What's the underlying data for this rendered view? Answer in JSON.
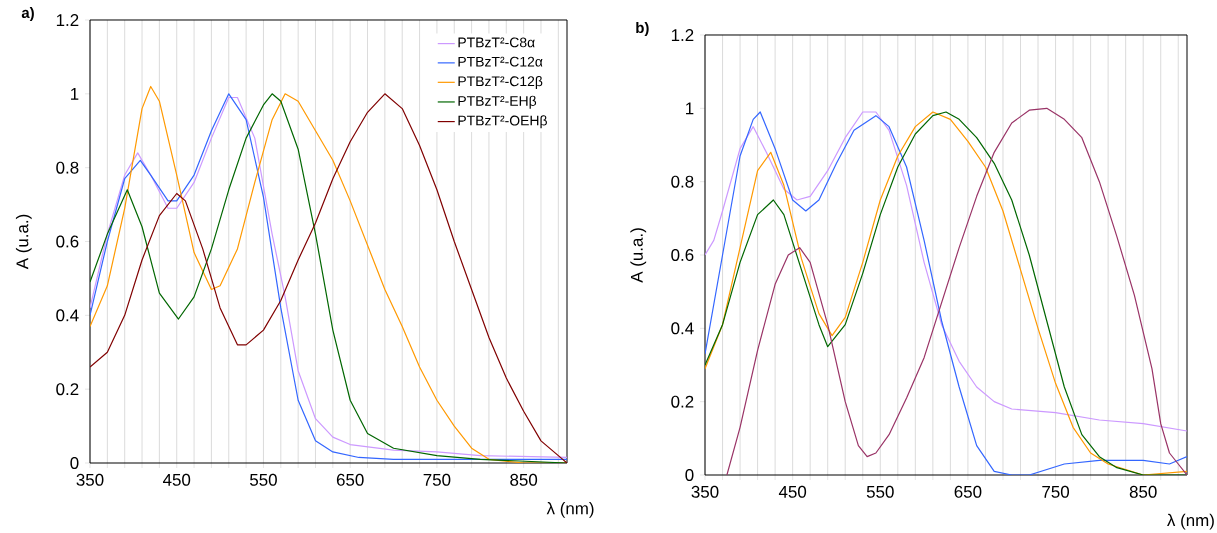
{
  "chart_data": [
    {
      "type": "line",
      "title": "a)",
      "xlabel": "λ (nm)",
      "ylabel": "A (u.a.)",
      "xlim": [
        350,
        900
      ],
      "ylim": [
        0,
        1.2
      ],
      "xticks": [
        350,
        {
          "value": 370,
          "label": null
        },
        {
          "value": 390,
          "label": null
        },
        {
          "value": 410,
          "label": null
        },
        {
          "value": 430,
          "label": null
        },
        450,
        {
          "value": 470,
          "label": null
        },
        {
          "value": 490,
          "label": null
        },
        {
          "value": 510,
          "label": null
        },
        {
          "value": 530,
          "label": null
        },
        550,
        {
          "value": 570,
          "label": null
        },
        {
          "value": 590,
          "label": null
        },
        {
          "value": 610,
          "label": null
        },
        {
          "value": 630,
          "label": null
        },
        650,
        {
          "value": 670,
          "label": null
        },
        {
          "value": 690,
          "label": null
        },
        {
          "value": 710,
          "label": null
        },
        {
          "value": 730,
          "label": null
        },
        750,
        {
          "value": 770,
          "label": null
        },
        {
          "value": 790,
          "label": null
        },
        {
          "value": 810,
          "label": null
        },
        {
          "value": 830,
          "label": null
        },
        850,
        {
          "value": 870,
          "label": null
        },
        {
          "value": 890,
          "label": null
        }
      ],
      "yticks": [
        0,
        0.2,
        0.4,
        0.6,
        0.8,
        1,
        1.2
      ],
      "grid": "x",
      "legend": "top right",
      "series": [
        {
          "name": "PTBzT²-C8α",
          "color": "#cc99ff",
          "x": [
            350,
            370,
            390,
            405,
            420,
            440,
            450,
            470,
            490,
            510,
            520,
            540,
            560,
            575,
            590,
            610,
            630,
            650,
            700,
            750,
            800,
            900
          ],
          "values": [
            0.42,
            0.62,
            0.78,
            0.84,
            0.78,
            0.69,
            0.69,
            0.76,
            0.88,
            0.99,
            0.99,
            0.88,
            0.62,
            0.45,
            0.25,
            0.12,
            0.07,
            0.05,
            0.035,
            0.03,
            0.02,
            0.015
          ]
        },
        {
          "name": "PTBzT²-C12α",
          "color": "#3366ff",
          "x": [
            350,
            370,
            390,
            408,
            420,
            440,
            450,
            470,
            490,
            510,
            530,
            550,
            570,
            590,
            610,
            630,
            660,
            700,
            900
          ],
          "values": [
            0.4,
            0.6,
            0.77,
            0.82,
            0.78,
            0.71,
            0.71,
            0.78,
            0.9,
            1.0,
            0.93,
            0.72,
            0.42,
            0.17,
            0.06,
            0.03,
            0.015,
            0.01,
            0.01
          ]
        },
        {
          "name": "PTBzT²-C12β",
          "color": "#ff9900",
          "x": [
            350,
            370,
            390,
            410,
            420,
            430,
            450,
            470,
            490,
            500,
            520,
            540,
            560,
            575,
            590,
            610,
            630,
            650,
            670,
            690,
            710,
            730,
            750,
            770,
            790,
            810,
            850,
            900
          ],
          "values": [
            0.37,
            0.48,
            0.69,
            0.96,
            1.02,
            0.98,
            0.78,
            0.57,
            0.47,
            0.48,
            0.58,
            0.76,
            0.93,
            1.0,
            0.98,
            0.9,
            0.82,
            0.71,
            0.59,
            0.47,
            0.37,
            0.26,
            0.17,
            0.1,
            0.04,
            0.01,
            0.0,
            0.0
          ]
        },
        {
          "name": "PTBzT²-EHβ",
          "color": "#006600",
          "x": [
            350,
            370,
            393,
            410,
            430,
            452,
            470,
            490,
            510,
            530,
            550,
            560,
            570,
            590,
            610,
            630,
            650,
            670,
            700,
            750,
            800,
            900
          ],
          "values": [
            0.49,
            0.62,
            0.74,
            0.64,
            0.46,
            0.39,
            0.45,
            0.58,
            0.74,
            0.88,
            0.97,
            1.0,
            0.98,
            0.85,
            0.62,
            0.36,
            0.17,
            0.08,
            0.04,
            0.02,
            0.01,
            0.0
          ]
        },
        {
          "name": "PTBzT²-OEHβ",
          "color": "#800000",
          "x": [
            350,
            370,
            390,
            410,
            430,
            450,
            460,
            480,
            500,
            520,
            530,
            550,
            570,
            590,
            610,
            630,
            650,
            670,
            690,
            710,
            730,
            750,
            770,
            790,
            810,
            830,
            850,
            870,
            890,
            900
          ],
          "values": [
            0.26,
            0.3,
            0.4,
            0.55,
            0.67,
            0.73,
            0.71,
            0.58,
            0.42,
            0.32,
            0.32,
            0.36,
            0.44,
            0.55,
            0.65,
            0.77,
            0.87,
            0.95,
            1.0,
            0.96,
            0.86,
            0.74,
            0.6,
            0.47,
            0.34,
            0.23,
            0.14,
            0.06,
            0.02,
            0.0
          ]
        }
      ]
    },
    {
      "type": "line",
      "title": "b)",
      "xlabel": "λ (nm)",
      "ylabel": "A (u.a.)",
      "xlim": [
        350,
        900
      ],
      "ylim": [
        0,
        1.2
      ],
      "xticks": [
        350,
        {
          "value": 370,
          "label": null
        },
        {
          "value": 390,
          "label": null
        },
        {
          "value": 410,
          "label": null
        },
        {
          "value": 430,
          "label": null
        },
        450,
        {
          "value": 470,
          "label": null
        },
        {
          "value": 490,
          "label": null
        },
        {
          "value": 510,
          "label": null
        },
        {
          "value": 530,
          "label": null
        },
        550,
        {
          "value": 570,
          "label": null
        },
        {
          "value": 590,
          "label": null
        },
        {
          "value": 610,
          "label": null
        },
        {
          "value": 630,
          "label": null
        },
        650,
        {
          "value": 670,
          "label": null
        },
        {
          "value": 690,
          "label": null
        },
        {
          "value": 710,
          "label": null
        },
        {
          "value": 730,
          "label": null
        },
        750,
        {
          "value": 770,
          "label": null
        },
        {
          "value": 790,
          "label": null
        },
        {
          "value": 810,
          "label": null
        },
        {
          "value": 830,
          "label": null
        },
        850,
        {
          "value": 870,
          "label": null
        },
        {
          "value": 890,
          "label": null
        }
      ],
      "yticks": [
        0,
        0.2,
        0.4,
        0.6,
        0.8,
        1,
        1.2
      ],
      "grid": "x",
      "series": [
        {
          "color": "#cc99ff",
          "x": [
            350,
            360,
            370,
            390,
            405,
            420,
            440,
            455,
            470,
            490,
            510,
            530,
            545,
            560,
            580,
            600,
            620,
            640,
            660,
            680,
            700,
            750,
            800,
            850,
            900
          ],
          "values": [
            0.6,
            0.64,
            0.72,
            0.89,
            0.95,
            0.88,
            0.78,
            0.75,
            0.76,
            0.83,
            0.92,
            0.99,
            0.99,
            0.94,
            0.79,
            0.58,
            0.41,
            0.31,
            0.24,
            0.2,
            0.18,
            0.17,
            0.15,
            0.14,
            0.12
          ]
        },
        {
          "color": "#3366ff",
          "x": [
            350,
            370,
            390,
            405,
            413,
            430,
            450,
            465,
            480,
            500,
            520,
            545,
            560,
            580,
            600,
            620,
            640,
            660,
            680,
            700,
            720,
            760,
            800,
            850,
            880,
            900
          ],
          "values": [
            0.33,
            0.6,
            0.87,
            0.97,
            0.99,
            0.89,
            0.75,
            0.72,
            0.75,
            0.85,
            0.94,
            0.98,
            0.95,
            0.84,
            0.64,
            0.42,
            0.24,
            0.08,
            0.01,
            0.0,
            0.0,
            0.03,
            0.04,
            0.04,
            0.03,
            0.05
          ]
        },
        {
          "color": "#ff9900",
          "x": [
            350,
            370,
            390,
            410,
            425,
            440,
            460,
            480,
            495,
            510,
            530,
            550,
            570,
            590,
            610,
            630,
            650,
            670,
            690,
            710,
            730,
            750,
            770,
            790,
            810,
            850,
            900
          ],
          "values": [
            0.29,
            0.41,
            0.62,
            0.83,
            0.88,
            0.79,
            0.59,
            0.44,
            0.38,
            0.43,
            0.58,
            0.75,
            0.87,
            0.95,
            0.99,
            0.97,
            0.91,
            0.84,
            0.72,
            0.56,
            0.4,
            0.25,
            0.13,
            0.06,
            0.03,
            0.0,
            0.01
          ]
        },
        {
          "color": "#006600",
          "x": [
            350,
            370,
            390,
            410,
            428,
            440,
            460,
            480,
            490,
            510,
            530,
            550,
            570,
            590,
            610,
            625,
            640,
            660,
            680,
            700,
            720,
            740,
            760,
            780,
            800,
            820,
            850,
            900
          ],
          "values": [
            0.3,
            0.41,
            0.58,
            0.71,
            0.75,
            0.71,
            0.56,
            0.41,
            0.35,
            0.41,
            0.55,
            0.71,
            0.84,
            0.93,
            0.98,
            0.99,
            0.97,
            0.92,
            0.85,
            0.75,
            0.6,
            0.42,
            0.24,
            0.11,
            0.05,
            0.02,
            0.0,
            0.0
          ]
        },
        {
          "color": "#993366",
          "x": [
            375,
            390,
            410,
            430,
            445,
            458,
            470,
            490,
            510,
            525,
            535,
            545,
            560,
            580,
            600,
            620,
            640,
            660,
            680,
            700,
            720,
            740,
            760,
            780,
            800,
            820,
            840,
            860,
            870,
            880,
            890,
            900
          ],
          "values": [
            0.0,
            0.13,
            0.34,
            0.52,
            0.6,
            0.62,
            0.58,
            0.41,
            0.2,
            0.08,
            0.05,
            0.06,
            0.11,
            0.21,
            0.32,
            0.47,
            0.62,
            0.76,
            0.88,
            0.96,
            0.995,
            1.0,
            0.97,
            0.92,
            0.8,
            0.65,
            0.49,
            0.29,
            0.14,
            0.06,
            0.03,
            0.0
          ]
        }
      ]
    }
  ]
}
